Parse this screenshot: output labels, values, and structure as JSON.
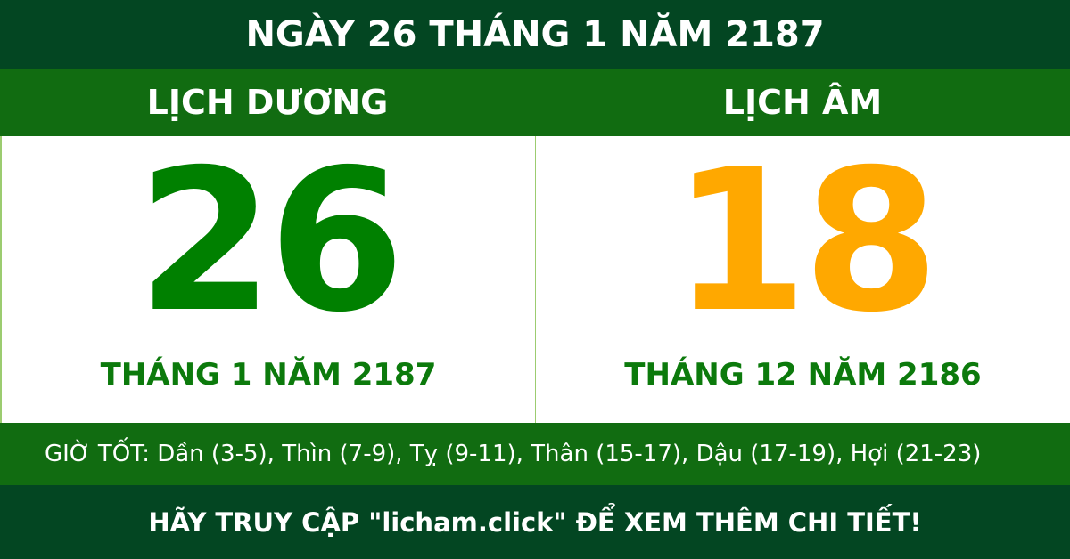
{
  "title": "NGÀY 26 THÁNG 1 NĂM 2187",
  "solar": {
    "label": "LỊCH DƯƠNG",
    "day": "26",
    "month_year": "THÁNG 1 NĂM 2187",
    "color": "#008000"
  },
  "lunar": {
    "label": "LỊCH ÂM",
    "day": "18",
    "month_year": "THÁNG 12 NĂM 2186",
    "color": "#ffa800"
  },
  "good_hours": "GIỜ TỐT: Dần (3-5), Thìn (7-9), Tỵ (9-11), Thân (15-17), Dậu (17-19), Hợi (21-23)",
  "footer": "HÃY TRUY CẬP \"licham.click\" ĐỂ XEM THÊM CHI TIẾT!"
}
